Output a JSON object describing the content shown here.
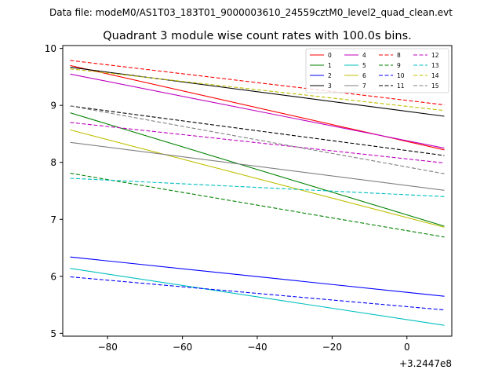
{
  "chart_data": {
    "type": "line",
    "suptitle": "Data file: modeM0/AS1T03_183T01_9000003610_24559cztM0_level2_quad_clean.evt",
    "title": "Quadrant 3 module wise count rates with 100.0s bins.",
    "xlabel": "",
    "ylabel": "",
    "x_offset_label": "+3.2447e8",
    "xlim": [
      -92,
      12
    ],
    "ylim": [
      4.95,
      10.05
    ],
    "x_ticks": [
      -80,
      -60,
      -40,
      -20,
      0
    ],
    "x_tick_labels": [
      "−80",
      "−60",
      "−40",
      "−20",
      "0"
    ],
    "y_ticks": [
      5,
      6,
      7,
      8,
      9,
      10
    ],
    "y_tick_labels": [
      "5",
      "6",
      "7",
      "8",
      "9",
      "10"
    ],
    "grid": false,
    "legend_position": "top-right",
    "x": [
      -90,
      10
    ],
    "series": [
      {
        "name": "0",
        "color": "#ff0000",
        "style": "solid",
        "values": [
          9.7,
          8.22
        ]
      },
      {
        "name": "1",
        "color": "#008000",
        "style": "solid",
        "values": [
          8.87,
          6.88
        ]
      },
      {
        "name": "2",
        "color": "#0000ff",
        "style": "solid",
        "values": [
          6.34,
          5.65
        ]
      },
      {
        "name": "3",
        "color": "#000000",
        "style": "solid",
        "values": [
          9.67,
          8.81
        ]
      },
      {
        "name": "4",
        "color": "#bf00bf",
        "style": "solid",
        "values": [
          9.55,
          8.25
        ]
      },
      {
        "name": "5",
        "color": "#00bfbf",
        "style": "solid",
        "values": [
          6.14,
          5.14
        ]
      },
      {
        "name": "6",
        "color": "#bfbf00",
        "style": "solid",
        "values": [
          8.57,
          6.86
        ]
      },
      {
        "name": "7",
        "color": "#808080",
        "style": "solid",
        "values": [
          8.35,
          7.51
        ]
      },
      {
        "name": "8",
        "color": "#ff0000",
        "style": "dashed",
        "values": [
          9.79,
          9.01
        ]
      },
      {
        "name": "9",
        "color": "#008000",
        "style": "dashed",
        "values": [
          7.81,
          6.69
        ]
      },
      {
        "name": "10",
        "color": "#0000ff",
        "style": "dashed",
        "values": [
          5.99,
          5.41
        ]
      },
      {
        "name": "11",
        "color": "#000000",
        "style": "dashed",
        "values": [
          8.99,
          8.12
        ]
      },
      {
        "name": "12",
        "color": "#bf00bf",
        "style": "dashed",
        "values": [
          8.7,
          7.99
        ]
      },
      {
        "name": "13",
        "color": "#00bfbf",
        "style": "dashed",
        "values": [
          7.72,
          7.4
        ]
      },
      {
        "name": "14",
        "color": "#bfbf00",
        "style": "dashed",
        "values": [
          9.64,
          8.91
        ]
      },
      {
        "name": "15",
        "color": "#808080",
        "style": "dashed",
        "values": [
          8.99,
          7.8
        ]
      }
    ]
  }
}
